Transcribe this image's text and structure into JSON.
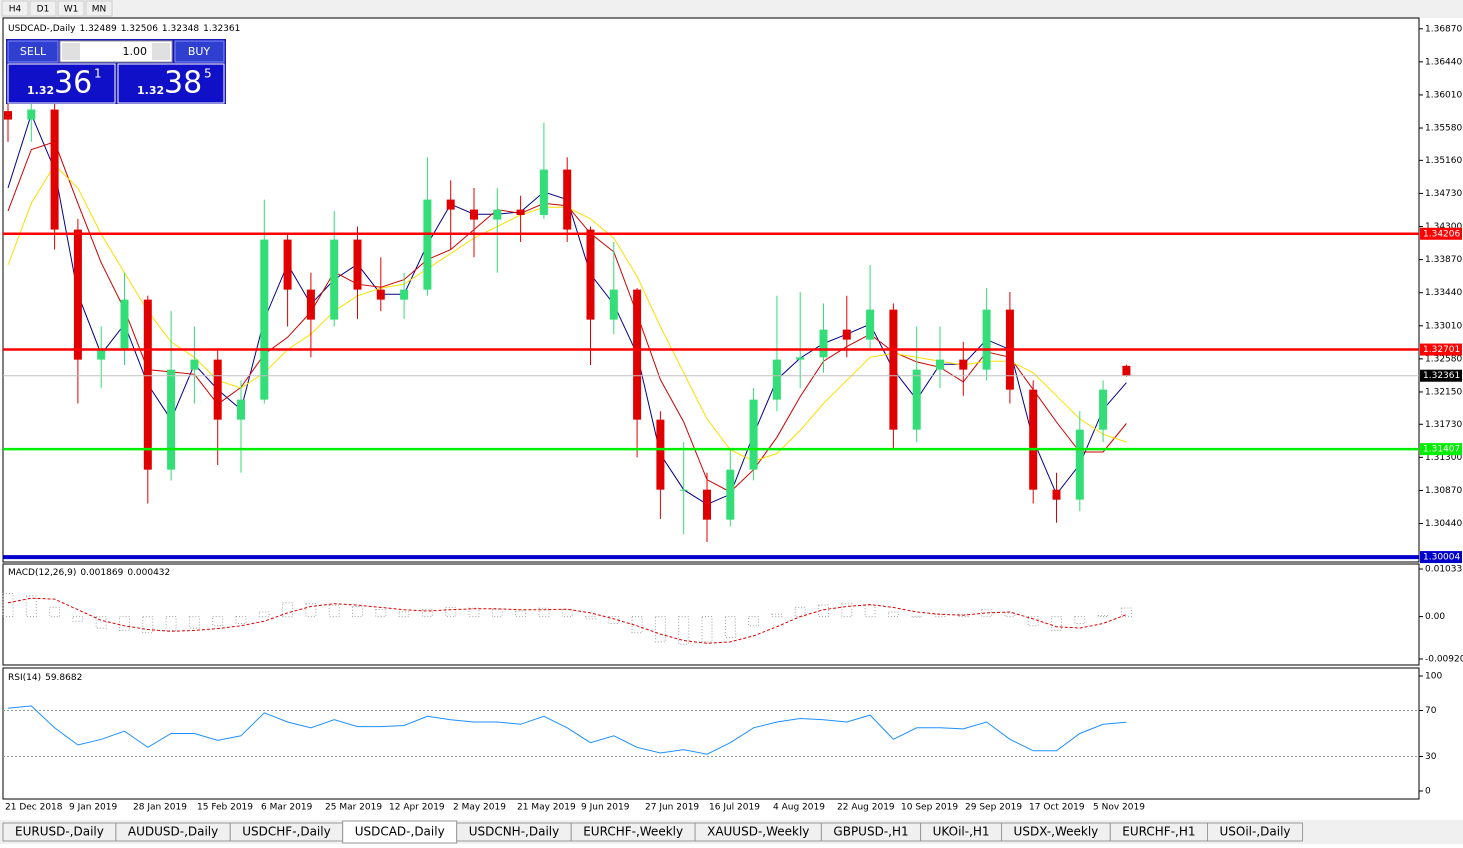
{
  "toolbar": {
    "timeframes": [
      "H4",
      "D1",
      "W1",
      "MN"
    ]
  },
  "trade_panel": {
    "sell": "SELL",
    "buy": "BUY",
    "lot": "1.00",
    "bid": {
      "big": "1.32",
      "pips": "36",
      "point": "1"
    },
    "ask": {
      "big": "1.32",
      "pips": "38",
      "point": "5"
    }
  },
  "chart_data": [
    {
      "type": "candlestick",
      "title": "USDCAD-,Daily",
      "up_color": "#33dd77",
      "down_color": "#e00000",
      "ylim": [
        1.2994,
        1.3701
      ],
      "yticks": [
        {
          "value": 1.3687,
          "label": "1.36870"
        },
        {
          "value": 1.3644,
          "label": "1.36440"
        },
        {
          "value": 1.3601,
          "label": "1.36010"
        },
        {
          "value": 1.3558,
          "label": "1.35580"
        },
        {
          "value": 1.3516,
          "label": "1.35160"
        },
        {
          "value": 1.3473,
          "label": "1.34730"
        },
        {
          "value": 1.343,
          "label": "1.34300"
        },
        {
          "value": 1.3387,
          "label": "1.33870"
        },
        {
          "value": 1.3344,
          "label": "1.33440"
        },
        {
          "value": 1.3301,
          "label": "1.33010"
        },
        {
          "value": 1.3258,
          "label": "1.32580"
        },
        {
          "value": 1.3215,
          "label": "1.32150"
        },
        {
          "value": 1.3173,
          "label": "1.31730"
        },
        {
          "value": 1.313,
          "label": "1.31300"
        },
        {
          "value": 1.3087,
          "label": "1.30870"
        },
        {
          "value": 1.3044,
          "label": "1.30440"
        }
      ],
      "x_labels": [
        "21 Dec 2018",
        "9 Jan 2019",
        "28 Jan 2019",
        "15 Feb 2019",
        "6 Mar 2019",
        "25 Mar 2019",
        "12 Apr 2019",
        "2 May 2019",
        "21 May 2019",
        "9 Jun 2019",
        "27 Jun 2019",
        "16 Jul 2019",
        "4 Aug 2019",
        "22 Aug 2019",
        "10 Sep 2019",
        "29 Sep 2019",
        "17 Oct 2019",
        "5 Nov 2019"
      ],
      "ohlc": [
        [
          1.358,
          1.364,
          1.354,
          1.3569
        ],
        [
          1.3569,
          1.36,
          1.354,
          1.3582
        ],
        [
          1.3582,
          1.3595,
          1.34,
          1.3426
        ],
        [
          1.3426,
          1.344,
          1.32,
          1.3257
        ],
        [
          1.3257,
          1.33,
          1.322,
          1.327
        ],
        [
          1.327,
          1.337,
          1.325,
          1.3335
        ],
        [
          1.3335,
          1.334,
          1.307,
          1.3114
        ],
        [
          1.3114,
          1.332,
          1.31,
          1.3244
        ],
        [
          1.3244,
          1.33,
          1.32,
          1.3257
        ],
        [
          1.3257,
          1.327,
          1.312,
          1.3179
        ],
        [
          1.3179,
          1.323,
          1.311,
          1.3205
        ],
        [
          1.3205,
          1.3465,
          1.32,
          1.3413
        ],
        [
          1.3413,
          1.342,
          1.33,
          1.3348
        ],
        [
          1.3348,
          1.337,
          1.326,
          1.3309
        ],
        [
          1.3309,
          1.345,
          1.33,
          1.3413
        ],
        [
          1.3413,
          1.343,
          1.331,
          1.3348
        ],
        [
          1.3348,
          1.339,
          1.332,
          1.3335
        ],
        [
          1.3335,
          1.337,
          1.331,
          1.3348
        ],
        [
          1.3348,
          1.352,
          1.334,
          1.3465
        ],
        [
          1.3465,
          1.349,
          1.34,
          1.3452
        ],
        [
          1.3452,
          1.348,
          1.339,
          1.3439
        ],
        [
          1.3439,
          1.348,
          1.337,
          1.3452
        ],
        [
          1.3452,
          1.347,
          1.341,
          1.3445
        ],
        [
          1.3445,
          1.3565,
          1.344,
          1.3504
        ],
        [
          1.3504,
          1.352,
          1.341,
          1.3426
        ],
        [
          1.3426,
          1.343,
          1.325,
          1.3309
        ],
        [
          1.3309,
          1.341,
          1.329,
          1.3348
        ],
        [
          1.3348,
          1.335,
          1.313,
          1.3179
        ],
        [
          1.3179,
          1.319,
          1.305,
          1.3088
        ],
        [
          1.3088,
          1.315,
          1.303,
          1.3088
        ],
        [
          1.3088,
          1.311,
          1.302,
          1.3049
        ],
        [
          1.3049,
          1.314,
          1.304,
          1.3114
        ],
        [
          1.3114,
          1.322,
          1.31,
          1.3205
        ],
        [
          1.3205,
          1.334,
          1.319,
          1.3257
        ],
        [
          1.3257,
          1.3345,
          1.322,
          1.326
        ],
        [
          1.326,
          1.333,
          1.324,
          1.3296
        ],
        [
          1.3296,
          1.334,
          1.326,
          1.3283
        ],
        [
          1.3283,
          1.338,
          1.327,
          1.3322
        ],
        [
          1.3322,
          1.333,
          1.314,
          1.3166
        ],
        [
          1.3166,
          1.33,
          1.315,
          1.3244
        ],
        [
          1.3244,
          1.33,
          1.322,
          1.3257
        ],
        [
          1.3257,
          1.328,
          1.321,
          1.3244
        ],
        [
          1.3244,
          1.335,
          1.323,
          1.3322
        ],
        [
          1.3322,
          1.3345,
          1.32,
          1.3218
        ],
        [
          1.3218,
          1.323,
          1.307,
          1.3088
        ],
        [
          1.3088,
          1.311,
          1.3045,
          1.3075
        ],
        [
          1.3075,
          1.319,
          1.306,
          1.3166
        ],
        [
          1.3166,
          1.323,
          1.315,
          1.3218
        ],
        [
          1.32489,
          1.32506,
          1.32348,
          1.32361
        ]
      ],
      "series": [
        {
          "color": "#00008b",
          "values": [
            1.348,
            1.3576,
            1.3504,
            1.3342,
            1.3264,
            1.3303,
            1.3225,
            1.3179,
            1.3251,
            1.3218,
            1.3192,
            1.3309,
            1.3381,
            1.3329,
            1.3361,
            1.3381,
            1.3342,
            1.3342,
            1.3407,
            1.3459,
            1.3446,
            1.3446,
            1.3449,
            1.3475,
            1.3465,
            1.3368,
            1.3329,
            1.3264,
            1.3134,
            1.3088,
            1.3069,
            1.3082,
            1.316,
            1.3231,
            1.3259,
            1.3278,
            1.329,
            1.3303,
            1.3244,
            1.3205,
            1.3251,
            1.3251,
            1.3283,
            1.327,
            1.3153,
            1.3082,
            1.3121,
            1.3192,
            1.3227
          ]
        },
        {
          "color": "#cc0000",
          "values": [
            1.345,
            1.353,
            1.354,
            1.346,
            1.3383,
            1.3322,
            1.3244,
            1.3241,
            1.3238,
            1.3199,
            1.3221,
            1.3264,
            1.3286,
            1.3319,
            1.3371,
            1.3355,
            1.3351,
            1.3361,
            1.3387,
            1.34,
            1.3426,
            1.3452,
            1.3447,
            1.346,
            1.3457,
            1.3421,
            1.3397,
            1.3316,
            1.3231,
            1.3176,
            1.3101,
            1.3085,
            1.3114,
            1.3156,
            1.3209,
            1.3255,
            1.3274,
            1.329,
            1.3267,
            1.3254,
            1.3247,
            1.3228,
            1.3267,
            1.326,
            1.3218,
            1.3176,
            1.3137,
            1.3137,
            1.3174
          ]
        },
        {
          "color": "#ffdd00",
          "values": [
            1.338,
            1.346,
            1.351,
            1.348,
            1.342,
            1.337,
            1.332,
            1.328,
            1.326,
            1.323,
            1.322,
            1.324,
            1.327,
            1.329,
            1.332,
            1.334,
            1.335,
            1.3355,
            1.3375,
            1.3395,
            1.3415,
            1.343,
            1.3445,
            1.3455,
            1.3455,
            1.344,
            1.3415,
            1.3365,
            1.33,
            1.324,
            1.318,
            1.314,
            1.3125,
            1.3135,
            1.3165,
            1.32,
            1.323,
            1.326,
            1.3265,
            1.326,
            1.3255,
            1.325,
            1.3255,
            1.3255,
            1.324,
            1.321,
            1.318,
            1.316,
            1.315
          ]
        }
      ],
      "levels": [
        {
          "value": 1.34206,
          "color": "#ff0000"
        },
        {
          "value": 1.32701,
          "color": "#ff0000"
        },
        {
          "value": 1.31407,
          "color": "#00ee00"
        },
        {
          "value": 1.30004,
          "color": "#0000cc"
        }
      ],
      "bid_line": {
        "value": 1.32361,
        "color": "#c0c0c0"
      }
    },
    {
      "type": "macd",
      "title": "MACD(12,26,9)",
      "ylim": [
        -0.009208,
        0.010331
      ],
      "yticks": [
        0.010331,
        {
          "value": 0,
          "label": "0.00"
        },
        -0.009208
      ],
      "hist_color": "#a0a0a0",
      "signal_color": "#e00000",
      "histogram": [
        0.005,
        0.0045,
        0.002,
        -0.001,
        -0.0025,
        -0.003,
        -0.0035,
        -0.003,
        -0.0025,
        -0.002,
        -0.0015,
        0.001,
        0.003,
        0.0028,
        0.0025,
        0.0022,
        0.0015,
        0.001,
        0.0015,
        0.002,
        0.0018,
        0.0015,
        0.0012,
        0.0018,
        0.0015,
        -0.0005,
        -0.0015,
        -0.0035,
        -0.0055,
        -0.006,
        -0.0055,
        -0.0045,
        -0.002,
        0.0005,
        0.002,
        0.0025,
        0.0028,
        0.0025,
        0.001,
        0,
        0.0005,
        0.0005,
        0.0015,
        0.0008,
        -0.002,
        -0.003,
        -0.0015,
        0.0002,
        0.001869
      ],
      "signal": [
        0.003,
        0.004,
        0.0038,
        0.0015,
        -0.0008,
        -0.002,
        -0.0028,
        -0.0032,
        -0.003,
        -0.0026,
        -0.002,
        -0.001,
        0.0008,
        0.0022,
        0.0028,
        0.0025,
        0.002,
        0.0015,
        0.0012,
        0.0015,
        0.0017,
        0.0017,
        0.0015,
        0.0015,
        0.0016,
        0.0008,
        -0.0005,
        -0.002,
        -0.0038,
        -0.0052,
        -0.0058,
        -0.0055,
        -0.0042,
        -0.0022,
        0,
        0.0015,
        0.0022,
        0.0026,
        0.002,
        0.001,
        0.0005,
        0.0003,
        0.0008,
        0.001,
        -0.0005,
        -0.0022,
        -0.0025,
        -0.0015,
        0.000432
      ]
    },
    {
      "type": "rsi",
      "title": "RSI(14)",
      "ylim": [
        0,
        100
      ],
      "yticks": [
        100,
        70,
        30,
        0
      ],
      "levels": [
        70,
        30
      ],
      "color": "#1e90ff",
      "values": [
        72,
        74,
        55,
        40,
        45,
        52,
        38,
        50,
        50,
        44,
        48,
        68,
        60,
        55,
        62,
        56,
        56,
        57,
        65,
        62,
        60,
        60,
        58,
        65,
        55,
        42,
        48,
        38,
        33,
        36,
        32,
        42,
        55,
        60,
        63,
        62,
        60,
        66,
        45,
        55,
        55,
        54,
        60,
        45,
        35,
        35,
        50,
        58,
        59.8682
      ]
    }
  ],
  "tabs": {
    "items": [
      "EURUSD-,Daily",
      "AUDUSD-,Daily",
      "USDCHF-,Daily",
      "USDCAD-,Daily",
      "USDCNH-,Daily",
      "EURCHF-,Weekly",
      "XAUUSD-,Weekly",
      "GBPUSD-,H1",
      "UKOil-,H1",
      "USDX-,Weekly",
      "EURCHF-,H1",
      "USOil-,Daily"
    ],
    "active": 3
  }
}
